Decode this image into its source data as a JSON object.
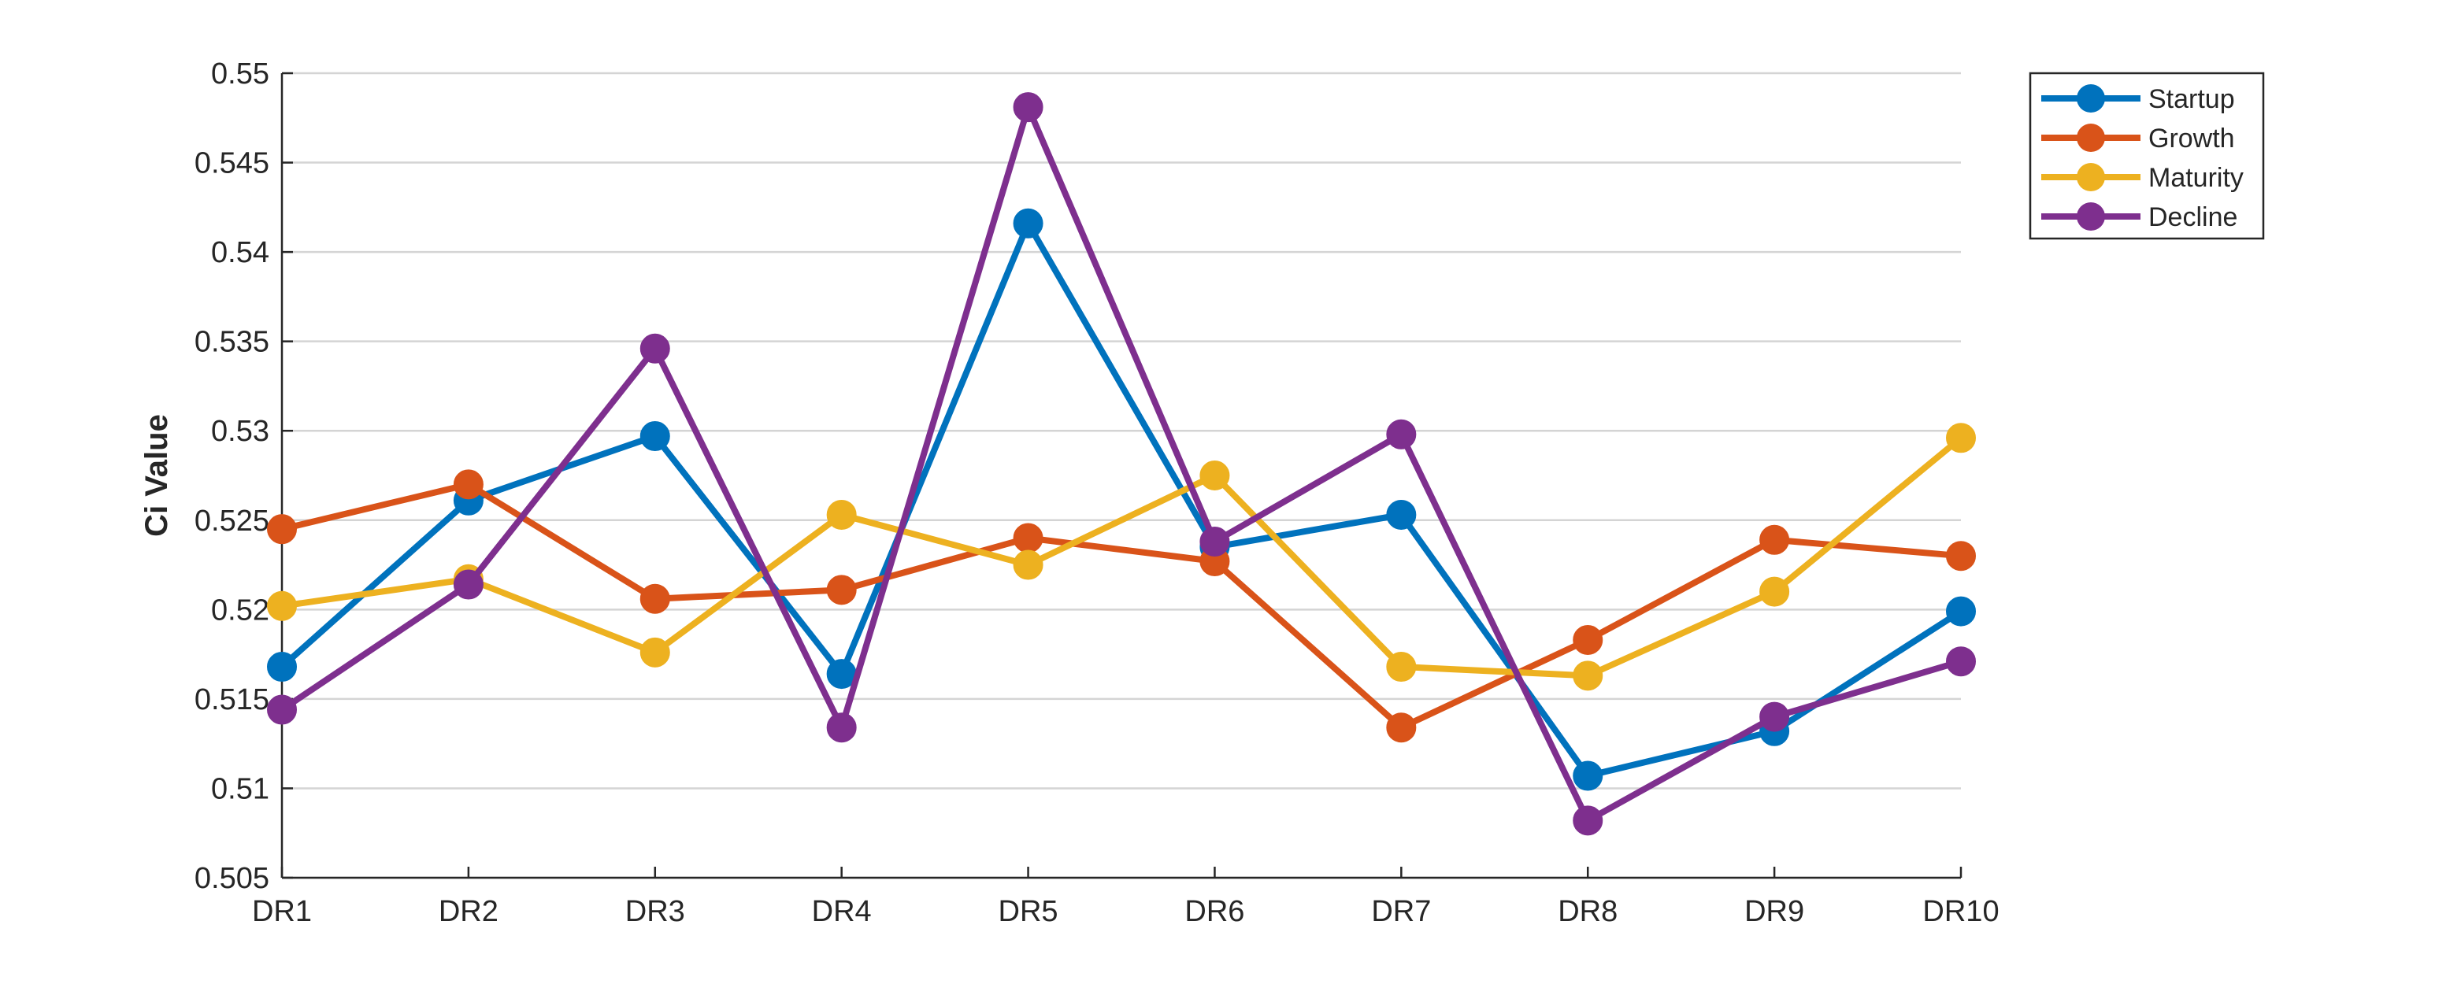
{
  "chart_data": {
    "type": "line",
    "title": "",
    "xlabel": "",
    "ylabel": "Ci Value",
    "categories": [
      "DR1",
      "DR2",
      "DR3",
      "DR4",
      "DR5",
      "DR6",
      "DR7",
      "DR8",
      "DR9",
      "DR10"
    ],
    "ylim": [
      0.505,
      0.55
    ],
    "yticks": [
      0.505,
      0.51,
      0.515,
      0.52,
      0.525,
      0.53,
      0.535,
      0.54,
      0.545,
      0.55
    ],
    "ytick_labels": [
      "0.505",
      "0.51",
      "0.515",
      "0.52",
      "0.525",
      "0.53",
      "0.535",
      "0.54",
      "0.545",
      "0.55"
    ],
    "grid": "horizontal",
    "legend_position": "top-right, outside plot",
    "series": [
      {
        "name": "Startup",
        "color": "#0072BD",
        "values": [
          0.5168,
          0.5261,
          0.5297,
          0.5164,
          0.5416,
          0.5235,
          0.5253,
          0.5107,
          0.5132,
          0.5199
        ]
      },
      {
        "name": "Growth",
        "color": "#D95319",
        "values": [
          0.5245,
          0.527,
          0.5206,
          0.5211,
          0.524,
          0.5227,
          0.5134,
          0.5183,
          0.5239,
          0.523
        ]
      },
      {
        "name": "Maturity",
        "color": "#EDB120",
        "values": [
          0.5202,
          0.5217,
          0.5176,
          0.5253,
          0.5225,
          0.5275,
          0.5168,
          0.5163,
          0.521,
          0.5296
        ]
      },
      {
        "name": "Decline",
        "color": "#7E2F8E",
        "values": [
          0.5144,
          0.5214,
          0.5346,
          0.5134,
          0.5481,
          0.5238,
          0.5298,
          0.5082,
          0.514,
          0.5171
        ]
      }
    ]
  }
}
